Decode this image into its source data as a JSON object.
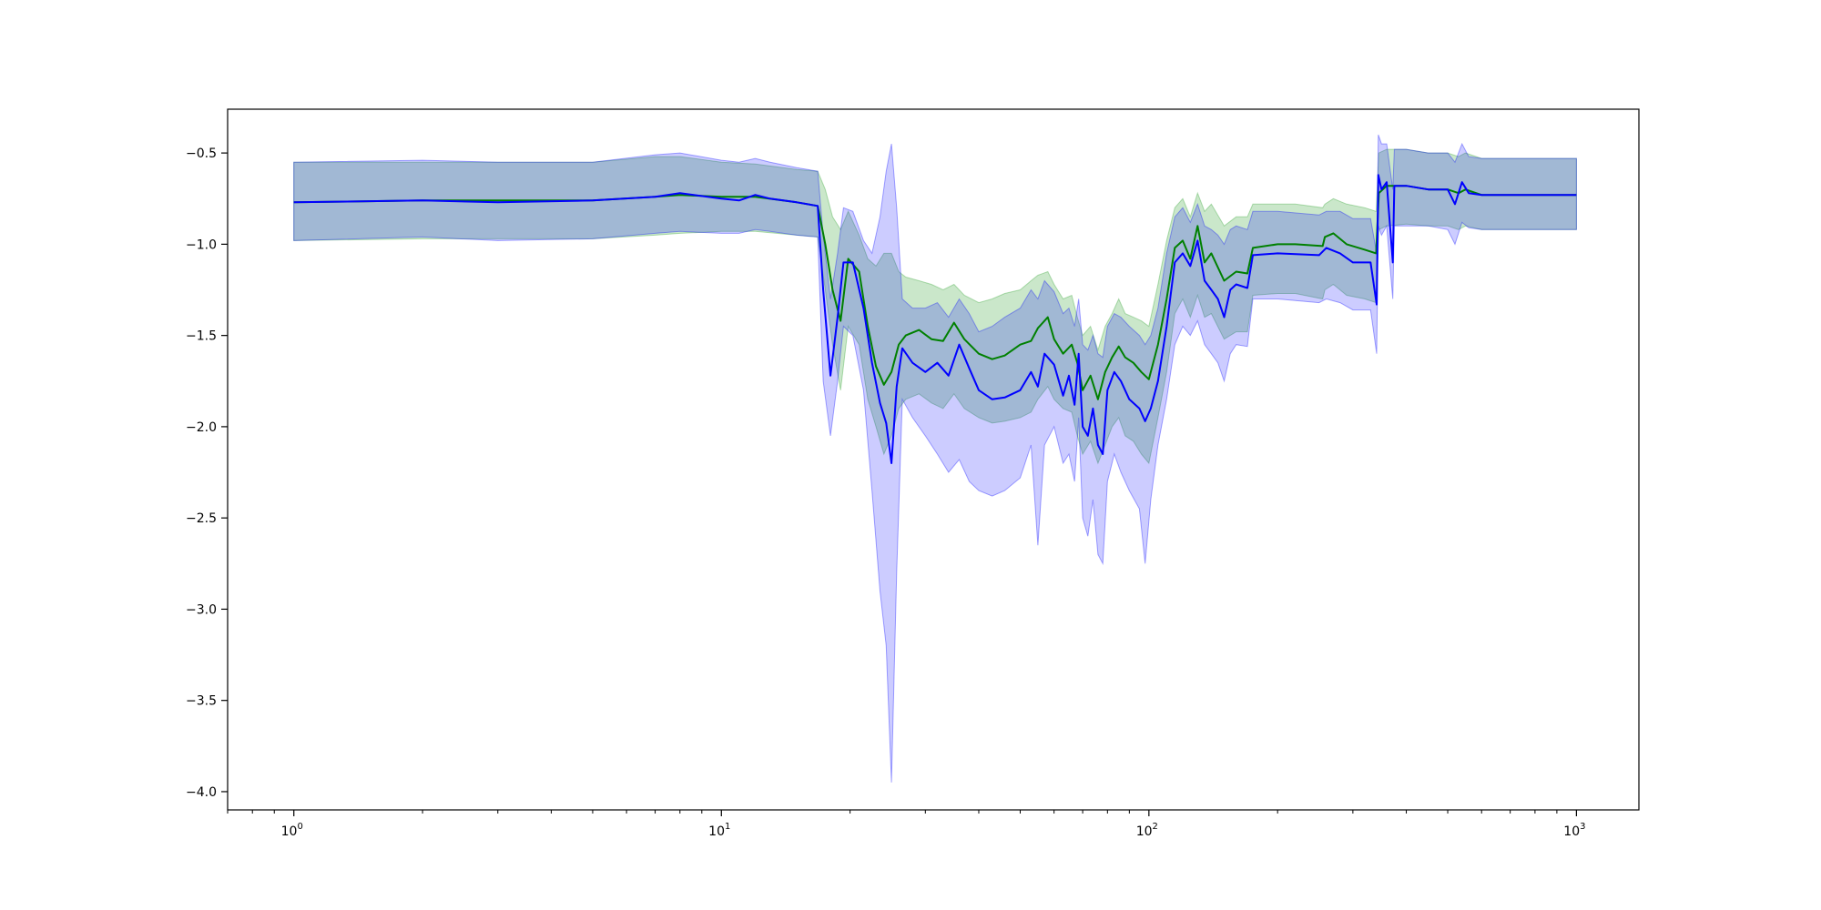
{
  "chart_data": {
    "type": "line",
    "title": "",
    "xlabel": "",
    "ylabel": "",
    "xscale": "log",
    "xlim": [
      0.7,
      1400
    ],
    "ylim": [
      -4.1,
      -0.26
    ],
    "grid": false,
    "legend": "none",
    "x_ticks": [
      {
        "base": "10",
        "exp": "0",
        "value": 1
      },
      {
        "base": "10",
        "exp": "1",
        "value": 10
      },
      {
        "base": "10",
        "exp": "2",
        "value": 100
      },
      {
        "base": "10",
        "exp": "3",
        "value": 1000
      }
    ],
    "y_ticks": [
      {
        "label": "−0.5",
        "value": -0.5
      },
      {
        "label": "−1.0",
        "value": -1.0
      },
      {
        "label": "−1.5",
        "value": -1.5
      },
      {
        "label": "−2.0",
        "value": -2.0
      },
      {
        "label": "−2.5",
        "value": -2.5
      },
      {
        "label": "−3.0",
        "value": -3.0
      },
      {
        "label": "−3.5",
        "value": -3.5
      },
      {
        "label": "−4.0",
        "value": -4.0
      }
    ],
    "series": [
      {
        "color": "#008000",
        "band_color": "#2ca02c",
        "band_opacity": 0.25,
        "points": [
          [
            1,
            -0.77,
            -0.55,
            -0.98
          ],
          [
            2,
            -0.76,
            -0.55,
            -0.97
          ],
          [
            3,
            -0.76,
            -0.55,
            -0.97
          ],
          [
            5,
            -0.76,
            -0.55,
            -0.97
          ],
          [
            7,
            -0.74,
            -0.52,
            -0.95
          ],
          [
            8,
            -0.73,
            -0.52,
            -0.94
          ],
          [
            10,
            -0.74,
            -0.55,
            -0.93
          ],
          [
            12,
            -0.74,
            -0.56,
            -0.93
          ],
          [
            15,
            -0.77,
            -0.59,
            -0.95
          ],
          [
            16.8,
            -0.79,
            -0.6,
            -0.96
          ],
          [
            17.5,
            -1.0,
            -0.7,
            -1.25
          ],
          [
            18.2,
            -1.25,
            -0.85,
            -1.55
          ],
          [
            19,
            -1.42,
            -0.92,
            -1.8
          ],
          [
            19.8,
            -1.08,
            -0.82,
            -1.45
          ],
          [
            21,
            -1.15,
            -0.95,
            -1.55
          ],
          [
            22,
            -1.45,
            -1.08,
            -1.85
          ],
          [
            23,
            -1.67,
            -1.12,
            -2.0
          ],
          [
            24,
            -1.77,
            -1.05,
            -2.15
          ],
          [
            25,
            -1.7,
            -1.05,
            -2.05
          ],
          [
            26,
            -1.55,
            -1.15,
            -1.9
          ],
          [
            27,
            -1.5,
            -1.18,
            -1.85
          ],
          [
            29,
            -1.47,
            -1.2,
            -1.82
          ],
          [
            31,
            -1.52,
            -1.22,
            -1.87
          ],
          [
            33,
            -1.53,
            -1.25,
            -1.9
          ],
          [
            35,
            -1.43,
            -1.22,
            -1.82
          ],
          [
            37,
            -1.52,
            -1.28,
            -1.9
          ],
          [
            40,
            -1.6,
            -1.32,
            -1.95
          ],
          [
            43,
            -1.63,
            -1.3,
            -1.98
          ],
          [
            46,
            -1.61,
            -1.27,
            -1.97
          ],
          [
            50,
            -1.55,
            -1.25,
            -1.95
          ],
          [
            53,
            -1.53,
            -1.2,
            -1.92
          ],
          [
            55,
            -1.46,
            -1.17,
            -1.85
          ],
          [
            58,
            -1.4,
            -1.15,
            -1.78
          ],
          [
            60,
            -1.52,
            -1.22,
            -1.85
          ],
          [
            63,
            -1.6,
            -1.3,
            -1.9
          ],
          [
            66,
            -1.55,
            -1.28,
            -1.92
          ],
          [
            68,
            -1.65,
            -1.4,
            -2.05
          ],
          [
            70,
            -1.8,
            -1.5,
            -2.15
          ],
          [
            73,
            -1.72,
            -1.45,
            -2.08
          ],
          [
            76,
            -1.85,
            -1.58,
            -2.2
          ],
          [
            79,
            -1.7,
            -1.45,
            -2.1
          ],
          [
            82,
            -1.62,
            -1.38,
            -2.0
          ],
          [
            85,
            -1.56,
            -1.3,
            -1.95
          ],
          [
            88,
            -1.62,
            -1.38,
            -2.05
          ],
          [
            92,
            -1.65,
            -1.4,
            -2.08
          ],
          [
            96,
            -1.7,
            -1.42,
            -2.15
          ],
          [
            100,
            -1.74,
            -1.45,
            -2.2
          ],
          [
            105,
            -1.55,
            -1.22,
            -1.95
          ],
          [
            110,
            -1.3,
            -0.98,
            -1.7
          ],
          [
            115,
            -1.02,
            -0.8,
            -1.38
          ],
          [
            120,
            -0.98,
            -0.75,
            -1.3
          ],
          [
            125,
            -1.08,
            -0.85,
            -1.4
          ],
          [
            130,
            -0.9,
            -0.72,
            -1.28
          ],
          [
            135,
            -1.1,
            -0.82,
            -1.4
          ],
          [
            140,
            -1.05,
            -0.78,
            -1.38
          ],
          [
            150,
            -1.2,
            -0.9,
            -1.52
          ],
          [
            160,
            -1.15,
            -0.85,
            -1.48
          ],
          [
            170,
            -1.16,
            -0.85,
            -1.48
          ],
          [
            175,
            -1.02,
            -0.78,
            -1.28
          ],
          [
            200,
            -1.0,
            -0.78,
            -1.27
          ],
          [
            220,
            -1.0,
            -0.78,
            -1.27
          ],
          [
            255,
            -1.01,
            -0.8,
            -1.3
          ],
          [
            258,
            -0.96,
            -0.78,
            -1.25
          ],
          [
            270,
            -0.94,
            -0.75,
            -1.22
          ],
          [
            290,
            -1.0,
            -0.78,
            -1.28
          ],
          [
            320,
            -1.03,
            -0.8,
            -1.3
          ],
          [
            340,
            -1.05,
            -0.82,
            -1.32
          ],
          [
            345,
            -0.72,
            -0.5,
            -0.92
          ],
          [
            360,
            -0.68,
            -0.48,
            -0.9
          ],
          [
            400,
            -0.68,
            -0.48,
            -0.89
          ],
          [
            450,
            -0.7,
            -0.5,
            -0.9
          ],
          [
            500,
            -0.7,
            -0.5,
            -0.9
          ],
          [
            530,
            -0.72,
            -0.52,
            -0.92
          ],
          [
            550,
            -0.7,
            -0.5,
            -0.9
          ],
          [
            600,
            -0.73,
            -0.53,
            -0.92
          ],
          [
            800,
            -0.73,
            -0.53,
            -0.92
          ],
          [
            1000,
            -0.73,
            -0.53,
            -0.92
          ]
        ]
      },
      {
        "color": "#0000ff",
        "band_color": "#0000ff",
        "band_opacity": 0.2,
        "points": [
          [
            1,
            -0.77,
            -0.55,
            -0.98
          ],
          [
            2,
            -0.76,
            -0.54,
            -0.96
          ],
          [
            3,
            -0.77,
            -0.55,
            -0.98
          ],
          [
            5,
            -0.76,
            -0.55,
            -0.97
          ],
          [
            7,
            -0.74,
            -0.51,
            -0.94
          ],
          [
            8,
            -0.72,
            -0.5,
            -0.93
          ],
          [
            10,
            -0.75,
            -0.54,
            -0.94
          ],
          [
            11,
            -0.76,
            -0.55,
            -0.94
          ],
          [
            12,
            -0.73,
            -0.53,
            -0.92
          ],
          [
            13,
            -0.75,
            -0.55,
            -0.93
          ],
          [
            15,
            -0.77,
            -0.58,
            -0.95
          ],
          [
            16.8,
            -0.79,
            -0.6,
            -0.96
          ],
          [
            17.3,
            -1.25,
            -0.95,
            -1.75
          ],
          [
            18,
            -1.72,
            -1.3,
            -2.05
          ],
          [
            18.7,
            -1.4,
            -1.05,
            -1.75
          ],
          [
            19.3,
            -1.1,
            -0.8,
            -1.45
          ],
          [
            20.3,
            -1.1,
            -0.82,
            -1.5
          ],
          [
            21.5,
            -1.35,
            -0.98,
            -1.8
          ],
          [
            22.5,
            -1.65,
            -1.05,
            -2.35
          ],
          [
            23.5,
            -1.87,
            -0.85,
            -2.9
          ],
          [
            24.3,
            -1.98,
            -0.6,
            -3.2
          ],
          [
            25,
            -2.2,
            -0.45,
            -3.95
          ],
          [
            25.7,
            -1.78,
            -0.8,
            -2.8
          ],
          [
            26.5,
            -1.57,
            -1.3,
            -1.85
          ],
          [
            28,
            -1.65,
            -1.35,
            -1.95
          ],
          [
            30,
            -1.7,
            -1.35,
            -2.05
          ],
          [
            32,
            -1.65,
            -1.32,
            -2.15
          ],
          [
            34,
            -1.72,
            -1.4,
            -2.25
          ],
          [
            36,
            -1.55,
            -1.3,
            -2.18
          ],
          [
            38,
            -1.68,
            -1.38,
            -2.3
          ],
          [
            40,
            -1.8,
            -1.48,
            -2.35
          ],
          [
            43,
            -1.85,
            -1.45,
            -2.38
          ],
          [
            46,
            -1.84,
            -1.4,
            -2.35
          ],
          [
            50,
            -1.8,
            -1.35,
            -2.28
          ],
          [
            53,
            -1.7,
            -1.25,
            -2.1
          ],
          [
            55,
            -1.78,
            -1.3,
            -2.65
          ],
          [
            57,
            -1.6,
            -1.2,
            -2.1
          ],
          [
            60,
            -1.66,
            -1.26,
            -2.0
          ],
          [
            63,
            -1.83,
            -1.38,
            -2.2
          ],
          [
            65,
            -1.72,
            -1.35,
            -2.15
          ],
          [
            67,
            -1.88,
            -1.45,
            -2.3
          ],
          [
            68.5,
            -1.6,
            -1.3,
            -1.95
          ],
          [
            70,
            -2.0,
            -1.55,
            -2.5
          ],
          [
            72,
            -2.05,
            -1.58,
            -2.6
          ],
          [
            74,
            -1.9,
            -1.5,
            -2.4
          ],
          [
            76,
            -2.1,
            -1.6,
            -2.7
          ],
          [
            78,
            -2.15,
            -1.62,
            -2.75
          ],
          [
            80,
            -1.8,
            -1.45,
            -2.3
          ],
          [
            83,
            -1.7,
            -1.38,
            -2.15
          ],
          [
            86,
            -1.75,
            -1.4,
            -2.25
          ],
          [
            90,
            -1.85,
            -1.45,
            -2.35
          ],
          [
            95,
            -1.9,
            -1.5,
            -2.45
          ],
          [
            98,
            -1.97,
            -1.55,
            -2.75
          ],
          [
            101,
            -1.9,
            -1.5,
            -2.4
          ],
          [
            105,
            -1.75,
            -1.35,
            -2.1
          ],
          [
            110,
            -1.45,
            -1.05,
            -1.85
          ],
          [
            115,
            -1.1,
            -0.85,
            -1.55
          ],
          [
            120,
            -1.05,
            -0.8,
            -1.45
          ],
          [
            125,
            -1.12,
            -0.88,
            -1.5
          ],
          [
            130,
            -0.98,
            -0.78,
            -1.42
          ],
          [
            135,
            -1.2,
            -0.9,
            -1.55
          ],
          [
            140,
            -1.25,
            -0.92,
            -1.6
          ],
          [
            145,
            -1.3,
            -0.95,
            -1.65
          ],
          [
            150,
            -1.4,
            -1.0,
            -1.75
          ],
          [
            155,
            -1.25,
            -0.92,
            -1.6
          ],
          [
            160,
            -1.22,
            -0.9,
            -1.55
          ],
          [
            170,
            -1.24,
            -0.92,
            -1.56
          ],
          [
            175,
            -1.06,
            -0.82,
            -1.3
          ],
          [
            200,
            -1.05,
            -0.82,
            -1.3
          ],
          [
            250,
            -1.06,
            -0.84,
            -1.32
          ],
          [
            260,
            -1.02,
            -0.82,
            -1.3
          ],
          [
            280,
            -1.05,
            -0.82,
            -1.32
          ],
          [
            300,
            -1.1,
            -0.86,
            -1.36
          ],
          [
            330,
            -1.1,
            -0.86,
            -1.36
          ],
          [
            341,
            -1.33,
            -1.05,
            -1.6
          ],
          [
            344,
            -0.62,
            -0.4,
            -0.9
          ],
          [
            350,
            -0.7,
            -0.45,
            -0.95
          ],
          [
            360,
            -0.66,
            -0.45,
            -0.9
          ],
          [
            372,
            -1.1,
            -0.7,
            -1.3
          ],
          [
            375,
            -0.68,
            -0.48,
            -0.9
          ],
          [
            400,
            -0.68,
            -0.48,
            -0.9
          ],
          [
            450,
            -0.7,
            -0.5,
            -0.9
          ],
          [
            500,
            -0.7,
            -0.5,
            -0.92
          ],
          [
            520,
            -0.78,
            -0.55,
            -1.0
          ],
          [
            540,
            -0.66,
            -0.45,
            -0.88
          ],
          [
            560,
            -0.72,
            -0.52,
            -0.91
          ],
          [
            600,
            -0.73,
            -0.53,
            -0.92
          ],
          [
            800,
            -0.73,
            -0.53,
            -0.92
          ],
          [
            1000,
            -0.73,
            -0.53,
            -0.92
          ]
        ]
      }
    ]
  }
}
